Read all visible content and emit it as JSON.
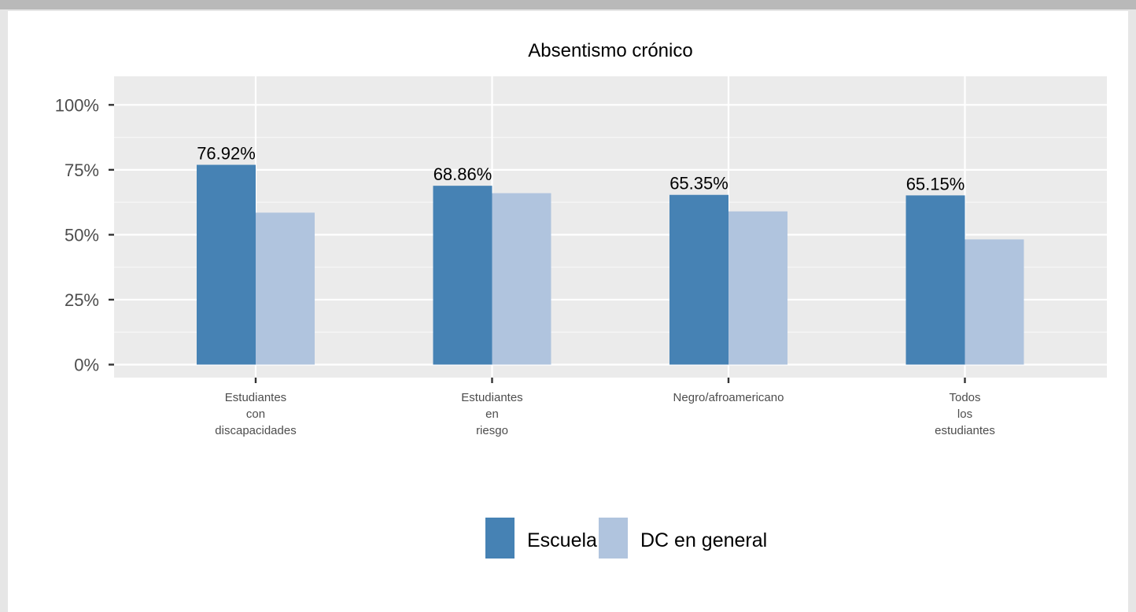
{
  "chart_data": {
    "type": "bar",
    "title": "Absentismo crónico",
    "xlabel": "",
    "ylabel": "",
    "categories": [
      [
        "Estudiantes",
        "con",
        "discapacidades"
      ],
      [
        "Estudiantes",
        "en",
        "riesgo"
      ],
      [
        "Negro/afroamericano"
      ],
      [
        "Todos",
        "los",
        "estudiantes"
      ]
    ],
    "series": [
      {
        "name": "Escuela",
        "color": "#4682b4",
        "values": [
          76.92,
          68.86,
          65.35,
          65.15
        ],
        "labels": [
          "76.92%",
          "68.86%",
          "65.35%",
          "65.15%"
        ]
      },
      {
        "name": "DC en general",
        "color": "#b0c4de",
        "values": [
          58.5,
          66.0,
          59.0,
          48.2
        ]
      }
    ],
    "ylim": [
      -5,
      111
    ],
    "yticks": [
      0,
      25,
      50,
      75,
      100
    ],
    "ytick_labels": [
      "0%",
      "25%",
      "50%",
      "75%",
      "100%"
    ],
    "grid": true,
    "legend_position": "bottom"
  }
}
